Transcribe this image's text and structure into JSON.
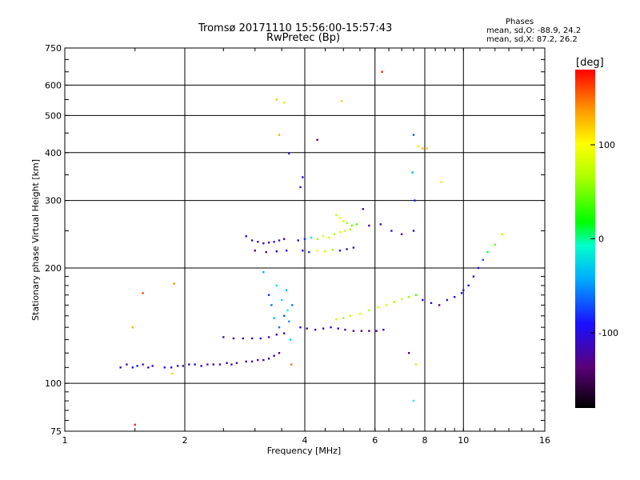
{
  "chart_data": {
    "type": "scatter",
    "title": "Tromsø 20171110 15:56:00-15:57:43",
    "subtitle": "RwPretec (Bp)",
    "xlabel": "Frequency [MHz]",
    "ylabel": "Stationary phase Virtual Height [km]",
    "x_scale": "log",
    "y_scale": "log",
    "xlim": [
      1,
      16
    ],
    "ylim": [
      75,
      750
    ],
    "x_ticks": [
      1,
      2,
      4,
      6,
      8,
      10,
      16
    ],
    "y_ticks": [
      75,
      100,
      200,
      300,
      400,
      500,
      600,
      750
    ],
    "grid": true,
    "phase_stats": {
      "heading": "Phases",
      "line_o": "mean, sd,O: -88.9, 24.2",
      "line_x": "mean, sd,X:  87.2, 26.2"
    },
    "colorbar": {
      "label": "[deg]",
      "range": [
        -180,
        180
      ],
      "ticks": [
        100,
        0,
        -100
      ],
      "tick_labels": [
        "100",
        "0",
        "-100"
      ]
    },
    "series": [
      {
        "points": [
          [
            1.38,
            110,
            -110
          ],
          [
            1.43,
            112,
            -120
          ],
          [
            1.48,
            110,
            -100
          ],
          [
            1.52,
            111,
            -90
          ],
          [
            1.57,
            112,
            -110
          ],
          [
            1.62,
            110,
            -120
          ],
          [
            1.66,
            111,
            -100
          ],
          [
            1.78,
            110,
            -105
          ],
          [
            1.85,
            110,
            -110
          ],
          [
            1.92,
            111,
            -115
          ],
          [
            1.98,
            111,
            -120
          ],
          [
            2.05,
            112,
            -110
          ],
          [
            2.12,
            112,
            -100
          ],
          [
            2.2,
            111,
            -110
          ],
          [
            2.28,
            112,
            -120
          ],
          [
            2.36,
            112,
            -105
          ],
          [
            2.45,
            112,
            -110
          ],
          [
            2.55,
            113,
            -115
          ],
          [
            2.62,
            112,
            -120
          ],
          [
            2.7,
            113,
            -110
          ],
          [
            2.85,
            114,
            -130
          ],
          [
            2.95,
            114,
            -120
          ],
          [
            3.05,
            115,
            -125
          ],
          [
            3.15,
            115,
            -110
          ],
          [
            3.25,
            116,
            -115
          ],
          [
            3.35,
            118,
            -120
          ],
          [
            3.45,
            120,
            -130
          ]
        ]
      },
      {
        "points": [
          [
            2.5,
            132,
            -120
          ],
          [
            2.65,
            131,
            -110
          ],
          [
            2.8,
            131,
            -110
          ],
          [
            2.95,
            131,
            -100
          ],
          [
            3.1,
            131,
            -95
          ],
          [
            3.25,
            132,
            -110
          ],
          [
            3.4,
            134,
            -120
          ],
          [
            3.55,
            135,
            -100
          ]
        ]
      },
      {
        "points": [
          [
            3.15,
            195,
            -40
          ],
          [
            3.25,
            170,
            -80
          ],
          [
            3.3,
            160,
            -60
          ],
          [
            3.35,
            148,
            -40
          ],
          [
            3.4,
            180,
            -20
          ],
          [
            3.45,
            140,
            -60
          ],
          [
            3.5,
            165,
            -20
          ],
          [
            3.55,
            150,
            -70
          ],
          [
            3.6,
            175,
            -40
          ],
          [
            3.62,
            155,
            -10
          ],
          [
            3.65,
            145,
            -50
          ],
          [
            3.68,
            130,
            -20
          ],
          [
            3.72,
            160,
            -60
          ]
        ]
      },
      {
        "points": [
          [
            2.85,
            242,
            -100
          ],
          [
            2.95,
            236,
            -110
          ],
          [
            3.05,
            234,
            -115
          ],
          [
            3.15,
            232,
            -120
          ],
          [
            3.25,
            233,
            -110
          ],
          [
            3.35,
            234,
            -100
          ],
          [
            3.45,
            236,
            -90
          ],
          [
            3.55,
            238,
            -120
          ],
          [
            3.0,
            222,
            -140
          ],
          [
            3.2,
            220,
            -130
          ],
          [
            3.4,
            221,
            -120
          ],
          [
            3.6,
            222,
            -110
          ]
        ]
      },
      {
        "points": [
          [
            3.85,
            236,
            -110
          ],
          [
            4.0,
            238,
            -80
          ],
          [
            4.15,
            240,
            -20
          ],
          [
            4.3,
            238,
            60
          ],
          [
            4.45,
            242,
            90
          ],
          [
            4.6,
            240,
            80
          ],
          [
            4.75,
            245,
            70
          ],
          [
            4.9,
            248,
            90
          ],
          [
            5.05,
            250,
            70
          ],
          [
            5.2,
            252,
            60
          ],
          [
            3.95,
            222,
            -100
          ],
          [
            4.1,
            220,
            -80
          ],
          [
            4.3,
            222,
            90
          ],
          [
            4.5,
            221,
            80
          ],
          [
            4.7,
            223,
            60
          ],
          [
            4.9,
            222,
            -100
          ],
          [
            5.1,
            224,
            -110
          ],
          [
            5.3,
            226,
            -100
          ],
          [
            4.8,
            275,
            70
          ],
          [
            4.9,
            270,
            90
          ],
          [
            5.0,
            265,
            80
          ],
          [
            5.1,
            262,
            60
          ],
          [
            5.25,
            258,
            50
          ],
          [
            5.4,
            260,
            40
          ],
          [
            5.6,
            285,
            -120
          ],
          [
            5.8,
            258,
            -130
          ],
          [
            6.2,
            260,
            -110
          ],
          [
            6.6,
            250,
            -100
          ],
          [
            7.0,
            245,
            -120
          ],
          [
            7.5,
            250,
            -110
          ]
        ]
      },
      {
        "points": [
          [
            3.9,
            140,
            -110
          ],
          [
            4.05,
            139,
            -120
          ],
          [
            4.25,
            138,
            -110
          ],
          [
            4.45,
            139,
            -100
          ],
          [
            4.65,
            140,
            -110
          ],
          [
            4.85,
            139,
            -110
          ],
          [
            5.05,
            138,
            -120
          ],
          [
            5.3,
            137,
            -130
          ],
          [
            5.55,
            137,
            -120
          ],
          [
            5.8,
            137,
            -130
          ],
          [
            6.05,
            137,
            -140
          ],
          [
            6.3,
            138,
            -110
          ]
        ]
      },
      {
        "points": [
          [
            4.8,
            147,
            80
          ],
          [
            5.0,
            148,
            60
          ],
          [
            5.2,
            150,
            80
          ],
          [
            5.5,
            152,
            90
          ],
          [
            5.8,
            155,
            70
          ],
          [
            6.1,
            158,
            80
          ],
          [
            6.4,
            160,
            90
          ],
          [
            6.7,
            163,
            70
          ],
          [
            7.0,
            166,
            80
          ],
          [
            7.3,
            168,
            60
          ],
          [
            7.6,
            170,
            40
          ],
          [
            7.9,
            165,
            -100
          ],
          [
            8.3,
            162,
            -110
          ],
          [
            8.7,
            160,
            -120
          ],
          [
            9.1,
            165,
            -110
          ],
          [
            9.5,
            168,
            -100
          ],
          [
            9.9,
            172,
            -90
          ]
        ]
      },
      {
        "points": [
          [
            10.0,
            175,
            -100
          ],
          [
            10.3,
            180,
            -90
          ],
          [
            10.6,
            190,
            -110
          ],
          [
            10.9,
            200,
            -100
          ],
          [
            11.2,
            210,
            -70
          ],
          [
            11.5,
            220,
            10
          ],
          [
            12.0,
            230,
            40
          ],
          [
            12.5,
            245,
            70
          ]
        ]
      },
      {
        "points": [
          [
            3.4,
            550,
            120
          ],
          [
            3.55,
            540,
            80
          ],
          [
            3.45,
            445,
            130
          ],
          [
            3.65,
            398,
            -110
          ],
          [
            4.3,
            432,
            -130
          ],
          [
            4.95,
            545,
            120
          ],
          [
            6.25,
            650,
            170
          ],
          [
            7.5,
            445,
            -70
          ],
          [
            7.7,
            415,
            110
          ],
          [
            7.9,
            410,
            130
          ],
          [
            8.1,
            410,
            120
          ],
          [
            8.8,
            335,
            110
          ],
          [
            7.45,
            355,
            -40
          ],
          [
            7.55,
            300,
            -90
          ],
          [
            3.9,
            325,
            -110
          ],
          [
            3.95,
            345,
            -100
          ],
          [
            7.5,
            90,
            -10
          ],
          [
            1.5,
            78,
            170
          ],
          [
            1.57,
            172,
            160
          ],
          [
            1.48,
            140,
            130
          ],
          [
            1.88,
            182,
            140
          ],
          [
            1.86,
            106,
            120
          ],
          [
            7.3,
            120,
            -130
          ],
          [
            7.6,
            112,
            80
          ],
          [
            3.7,
            112,
            150
          ]
        ]
      }
    ]
  }
}
